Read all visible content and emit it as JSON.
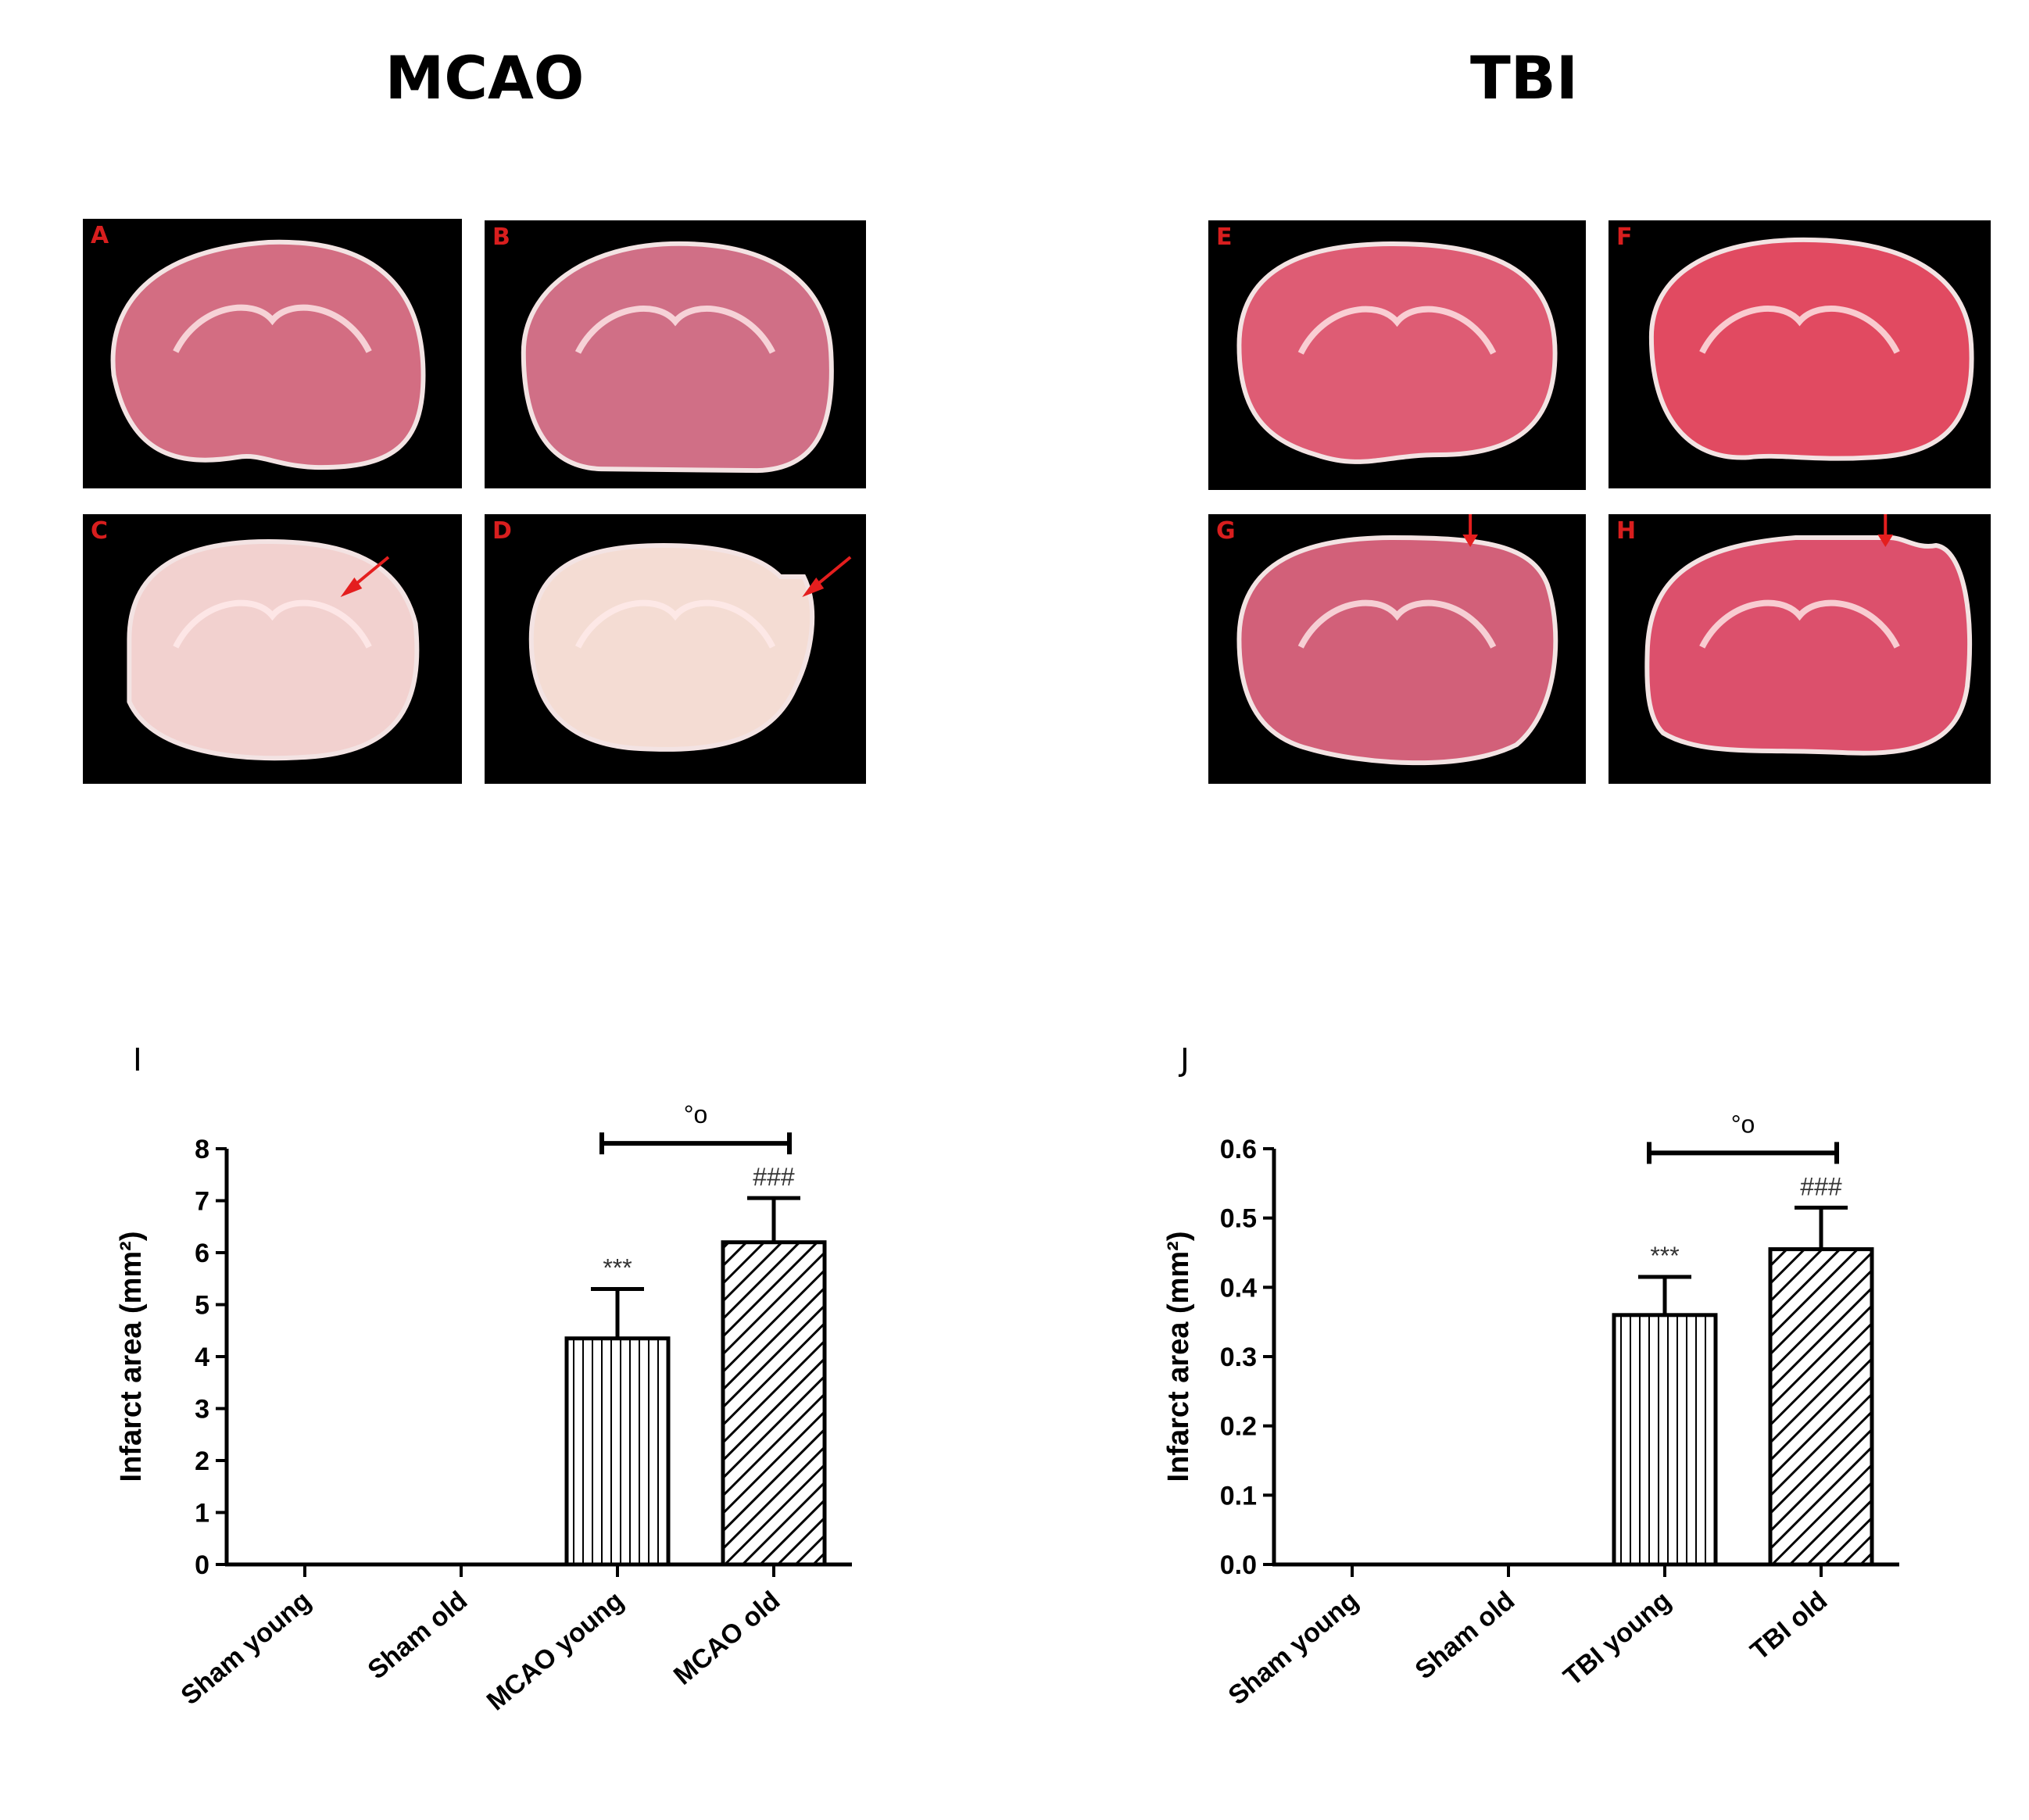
{
  "headings": {
    "left": "MCAO",
    "right": "TBI"
  },
  "panels": [
    {
      "label": "A",
      "arrow": "none"
    },
    {
      "label": "B",
      "arrow": "none"
    },
    {
      "label": "C",
      "arrow": "diagonal"
    },
    {
      "label": "D",
      "arrow": "diagonal"
    },
    {
      "label": "E",
      "arrow": "none"
    },
    {
      "label": "F",
      "arrow": "none"
    },
    {
      "label": "G",
      "arrow": "down"
    },
    {
      "label": "H",
      "arrow": "down"
    }
  ],
  "colors": {
    "tissue": "#d65a73",
    "pale": "#f0d6d4",
    "arrow": "#e41e1e",
    "label": "#d81e1e"
  },
  "chart_data": [
    {
      "panel": "I",
      "type": "bar",
      "categories": [
        "Sham young",
        "Sham old",
        "MCAO young",
        "MCAO old"
      ],
      "values": [
        0,
        0,
        4.35,
        6.2
      ],
      "errors": [
        0,
        0,
        0.95,
        0.85
      ],
      "patterns": [
        "none",
        "none",
        "vertical",
        "diagonal"
      ],
      "annotations": [
        "",
        "",
        "***",
        "###"
      ],
      "bracket": {
        "from": 2,
        "to": 3,
        "label": "°o"
      },
      "ylabel": "Infarct area (mm²)",
      "ylim": [
        0,
        8
      ],
      "yticks": [
        "0",
        "1",
        "2",
        "3",
        "4",
        "5",
        "6",
        "7",
        "8"
      ]
    },
    {
      "panel": "J",
      "type": "bar",
      "categories": [
        "Sham young",
        "Sham old",
        "TBI young",
        "TBI old"
      ],
      "values": [
        0,
        0,
        0.36,
        0.455
      ],
      "errors": [
        0,
        0,
        0.055,
        0.06
      ],
      "patterns": [
        "none",
        "none",
        "vertical",
        "diagonal"
      ],
      "annotations": [
        "",
        "",
        "***",
        "###"
      ],
      "bracket": {
        "from": 2,
        "to": 3,
        "label": "°o"
      },
      "ylabel": "Infarct area (mm²)",
      "ylim": [
        0,
        0.6
      ],
      "yticks": [
        "0.0",
        "0.1",
        "0.2",
        "0.3",
        "0.4",
        "0.5",
        "0.6"
      ]
    }
  ]
}
